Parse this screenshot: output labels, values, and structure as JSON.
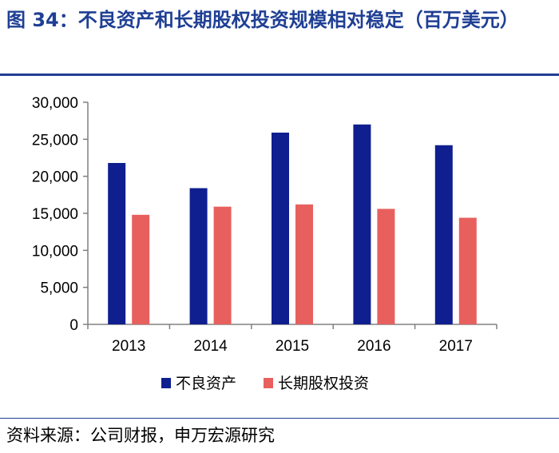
{
  "figure": {
    "title": "图 34：不良资产和长期股权投资规模相对稳定（百万美元）",
    "source": "资料来源：公司财报，申万宏源研究"
  },
  "chart_data": {
    "type": "bar",
    "categories": [
      "2013",
      "2014",
      "2015",
      "2016",
      "2017"
    ],
    "series": [
      {
        "name": "不良资产",
        "color": "#0f1f8f",
        "values": [
          21800,
          18400,
          25900,
          27000,
          24200
        ]
      },
      {
        "name": "长期股权投资",
        "color": "#e8605e",
        "values": [
          14800,
          15900,
          16200,
          15600,
          14400
        ]
      }
    ],
    "ylim": [
      0,
      30000
    ],
    "yticks": [
      0,
      5000,
      10000,
      15000,
      20000,
      25000,
      30000
    ],
    "ytick_labels": [
      "0",
      "5,000",
      "10,000",
      "15,000",
      "20,000",
      "25,000",
      "30,000"
    ],
    "grid": false,
    "legend_position": "bottom-center"
  }
}
